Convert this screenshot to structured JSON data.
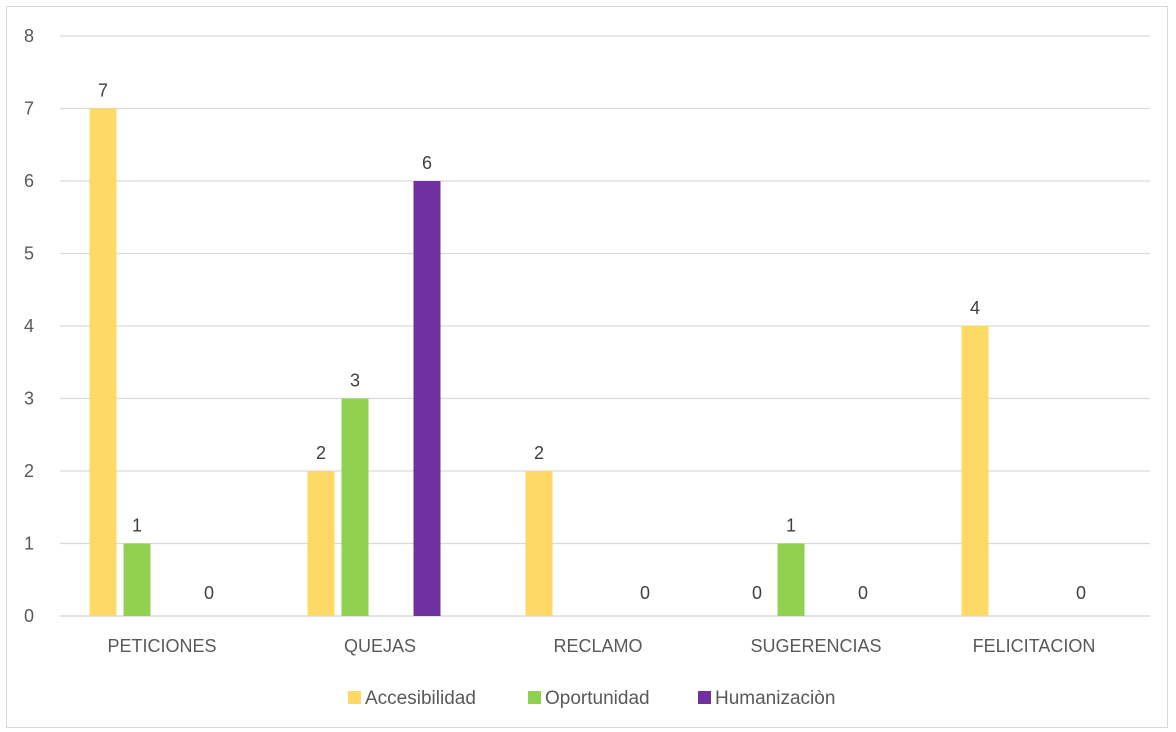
{
  "chart_data": {
    "type": "bar",
    "title": "",
    "xlabel": "",
    "ylabel": "",
    "categories": [
      "PETICIONES",
      "QUEJAS",
      "RECLAMO",
      "SUGERENCIAS",
      "FELICITACION"
    ],
    "series": [
      {
        "name": "Accesibilidad",
        "color": "#FFD966",
        "values": [
          7,
          2,
          2,
          0,
          4
        ]
      },
      {
        "name": "Oportunidad",
        "color": "#92D050",
        "values": [
          1,
          3,
          null,
          1,
          null
        ]
      },
      {
        "name": "Humanizaciòn",
        "color": "#7030A0",
        "values": [
          0,
          6,
          0,
          0,
          0
        ]
      }
    ],
    "ylim": [
      0,
      8
    ],
    "yticks": [
      0,
      1,
      2,
      3,
      4,
      5,
      6,
      7,
      8
    ],
    "grid": true,
    "legend": "bottom"
  }
}
